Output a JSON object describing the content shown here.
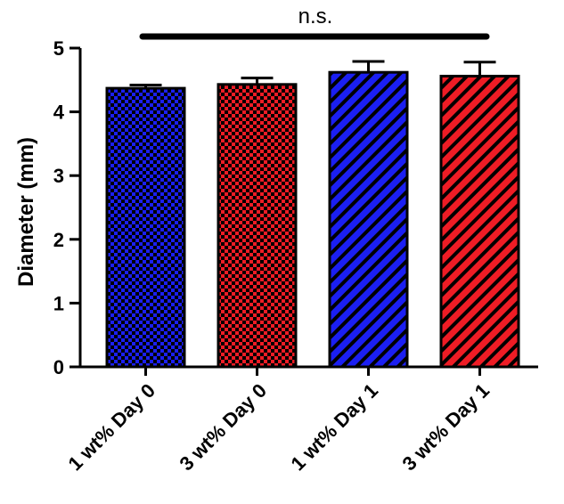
{
  "chart_data": {
    "type": "bar",
    "categories": [
      "1 wt% Day 0",
      "3 wt% Day 0",
      "1 wt% Day 1",
      "3 wt% Day 1"
    ],
    "values": [
      4.37,
      4.43,
      4.62,
      4.56
    ],
    "errors": [
      0.05,
      0.1,
      0.17,
      0.22
    ],
    "patterns": [
      "checker",
      "checker",
      "stripe",
      "stripe"
    ],
    "colors": [
      "#1b1ff2",
      "#ee1c25",
      "#1b1ff2",
      "#ee1c25"
    ],
    "ylabel": "Diameter (mm)",
    "xlabel": "",
    "ylim": [
      0,
      5
    ],
    "yticks": [
      0,
      1,
      2,
      3,
      4,
      5
    ],
    "annotation": "n.s."
  }
}
